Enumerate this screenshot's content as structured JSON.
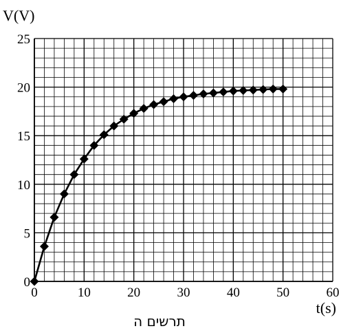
{
  "chart_data": {
    "type": "line",
    "title": "",
    "ylabel": "V(V)",
    "xlabel": "t(s)",
    "caption": "תרשים ה",
    "xlim": [
      0,
      60
    ],
    "ylim": [
      0,
      25
    ],
    "x_ticks": [
      "0",
      "10",
      "20",
      "30",
      "40",
      "50",
      "60"
    ],
    "y_ticks": [
      "0",
      "5",
      "10",
      "15",
      "20",
      "25"
    ],
    "grid": true,
    "marker": "diamond",
    "series": [
      {
        "x": [
          0,
          2,
          4,
          6,
          8,
          10,
          12,
          14,
          16,
          18,
          20,
          22,
          24,
          26,
          28,
          30,
          32,
          34,
          36,
          38,
          40,
          42,
          44,
          46,
          48,
          50
        ],
        "values": [
          0,
          3.6,
          6.6,
          9.0,
          11.0,
          12.6,
          14.0,
          15.1,
          16.0,
          16.7,
          17.3,
          17.8,
          18.2,
          18.5,
          18.8,
          19.0,
          19.15,
          19.3,
          19.4,
          19.5,
          19.6,
          19.65,
          19.7,
          19.75,
          19.8,
          19.8
        ]
      }
    ]
  }
}
